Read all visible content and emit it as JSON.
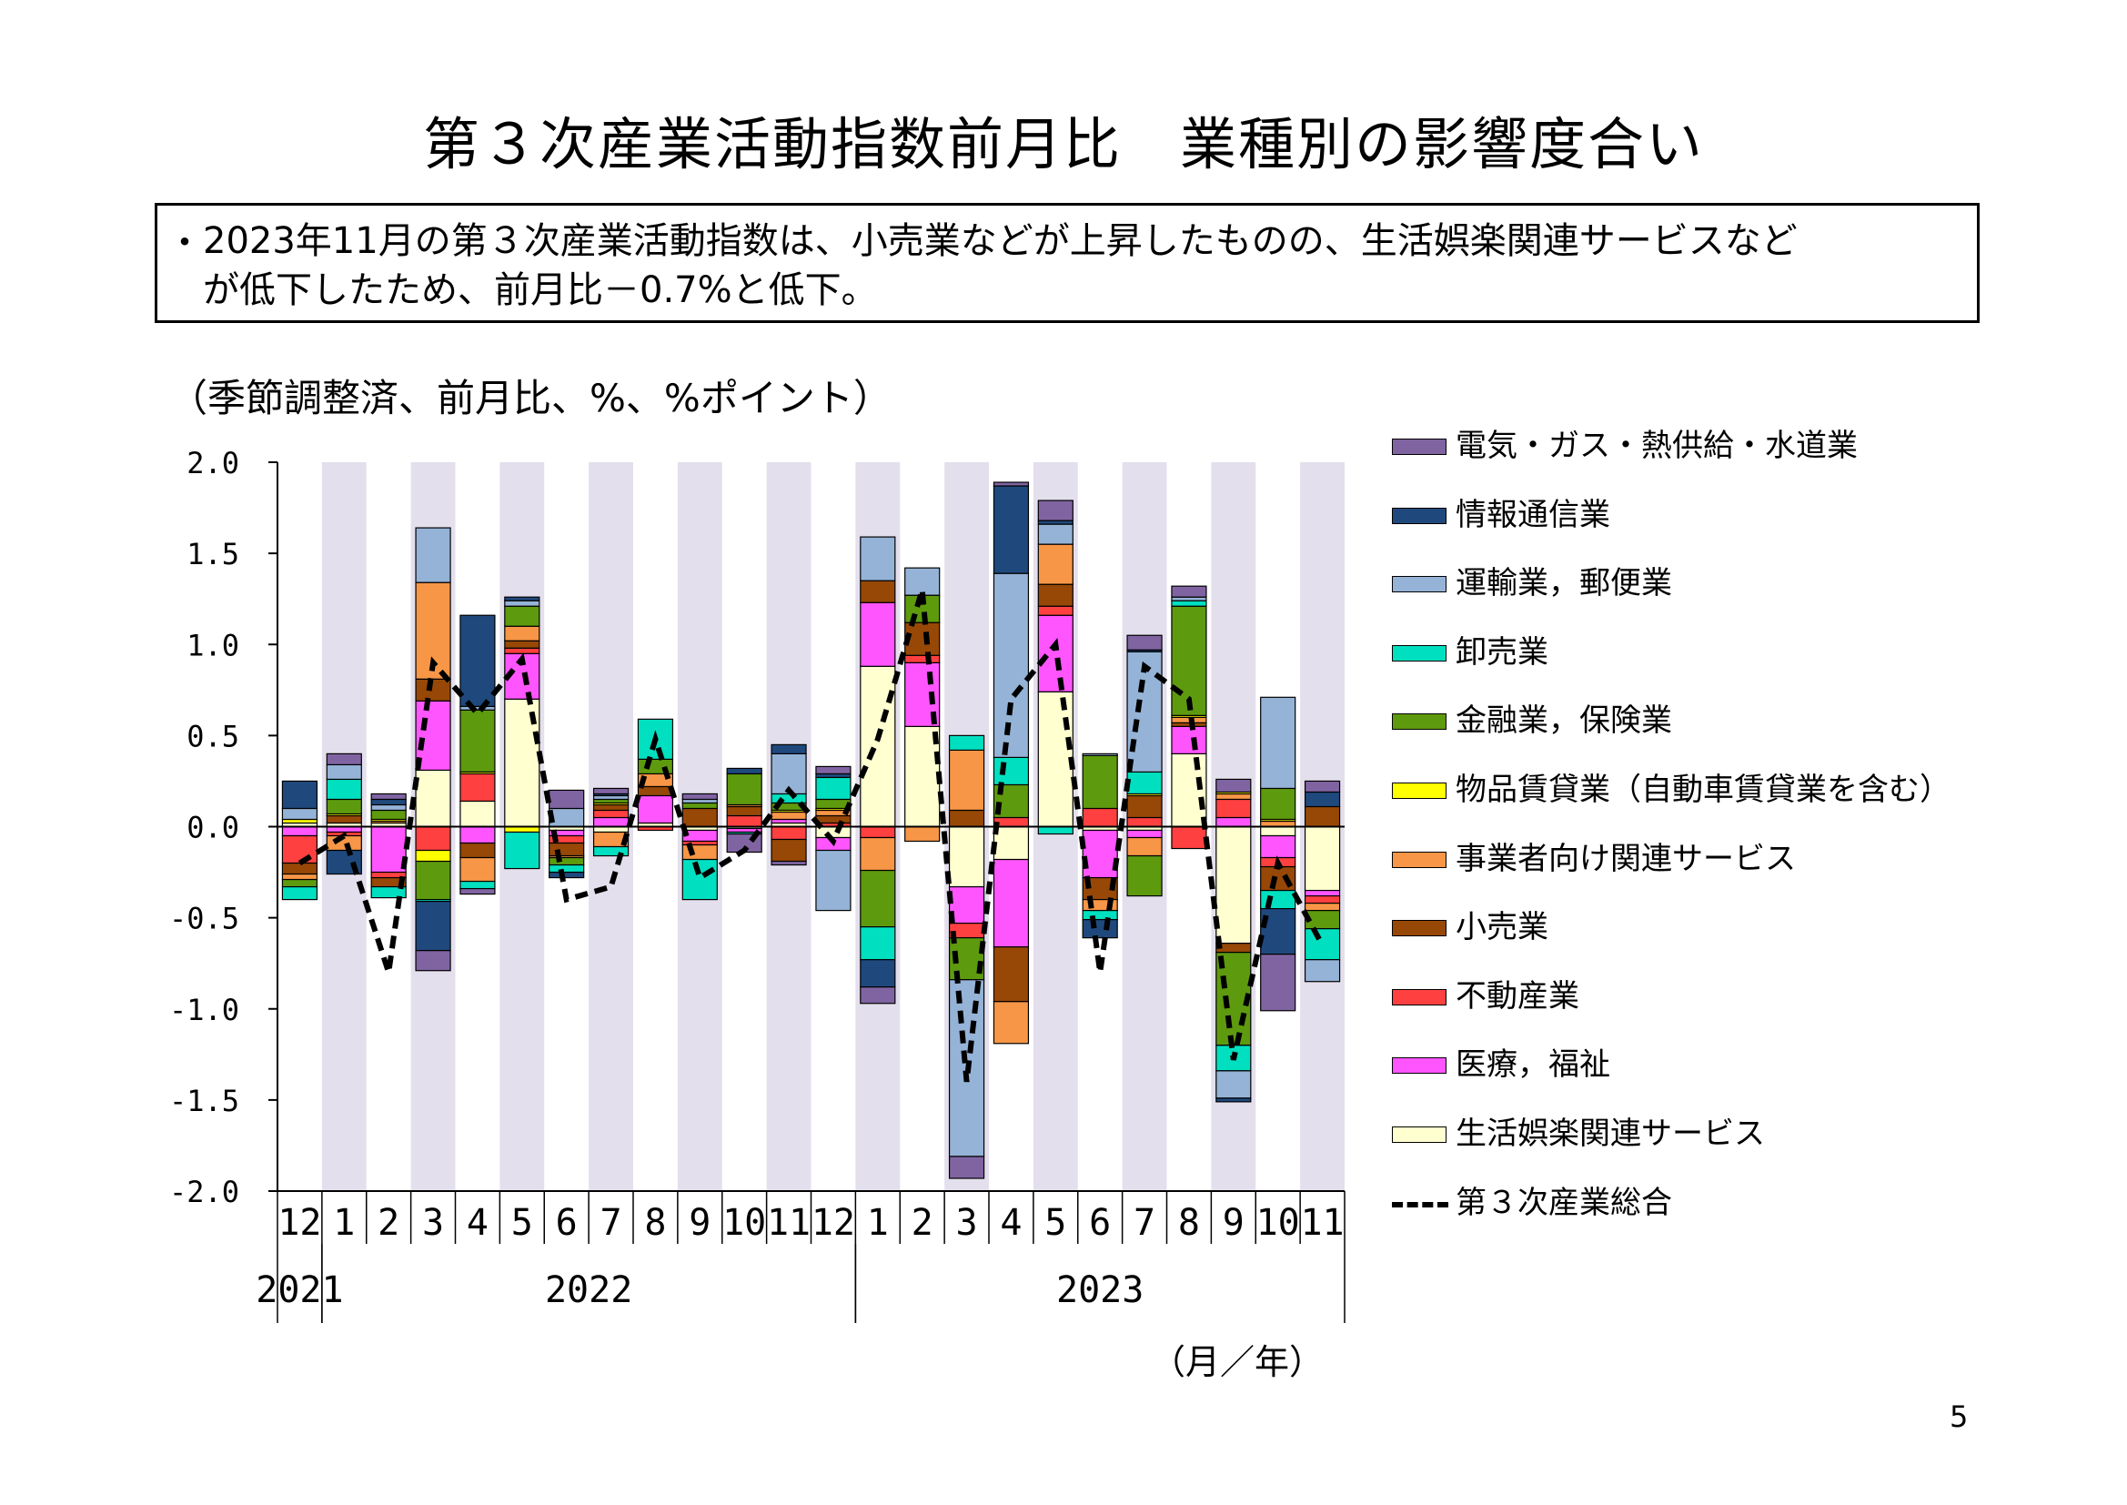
{
  "title": "第３次産業活動指数前月比　業種別の影響度合い",
  "summary": {
    "bullet": "・",
    "line1": "2023年11月の第３次産業活動指数は、小売業などが上昇したものの、生活娯楽関連サービスなど",
    "line2": "が低下したため、前月比－0.7%と低下。"
  },
  "unit_label": "（季節調整済、前月比、%、%ポイント）",
  "axis_unit_label": "（月／年）",
  "page_number": "5",
  "colors": {
    "電気・ガス・熱供給・水道業": "#8064A2",
    "情報通信業": "#1F497D",
    "運輸業,郵便業": "#95B3D7",
    "卸売業": "#00E0C0",
    "金融業,保険業": "#5E9A0E",
    "物品賃貸業": "#FFFF00",
    "事業者向け関連サービス": "#F79646",
    "小売業": "#974806",
    "不動産業": "#FF4040",
    "医療,福祉": "#FF55FF",
    "生活娯楽関連サービス": "#FFFFD0",
    "第３次産業総合": "#000000",
    "band": "#E4DFEC"
  },
  "chart_data": {
    "type": "stacked-bar-line",
    "title": "第３次産業活動指数前月比　業種別の影響度合い",
    "ylabel": "（季節調整済、前月比、%、%ポイント）",
    "xlabel": "（月／年）",
    "ylim": [
      -2.0,
      2.0
    ],
    "yticks": [
      "2.0",
      "1.5",
      "1.0",
      "0.5",
      "0.0",
      "-0.5",
      "-1.0",
      "-1.5",
      "-2.0"
    ],
    "categories": [
      "12",
      "1",
      "2",
      "3",
      "4",
      "5",
      "6",
      "7",
      "8",
      "9",
      "10",
      "11",
      "12",
      "1",
      "2",
      "3",
      "4",
      "5",
      "6",
      "7",
      "8",
      "9",
      "10",
      "11"
    ],
    "year_labels": [
      {
        "label": "2021",
        "span": [
          0,
          0
        ]
      },
      {
        "label": "2022",
        "span": [
          1,
          12
        ]
      },
      {
        "label": "2023",
        "span": [
          13,
          23
        ]
      }
    ],
    "series": [
      {
        "name": "生活娯楽関連サービス",
        "values": [
          0.02,
          0.02,
          0.02,
          0.31,
          0.14,
          0.7,
          -0.02,
          -0.03,
          0.02,
          -0.02,
          -0.01,
          0.02,
          -0.06,
          0.88,
          0.55,
          -0.33,
          -0.18,
          0.74,
          -0.02,
          -0.02,
          0.4,
          -0.64,
          -0.05,
          -0.35
        ]
      },
      {
        "name": "医療,福祉",
        "values": [
          -0.05,
          -0.03,
          -0.25,
          0.38,
          -0.09,
          0.25,
          -0.03,
          0.05,
          0.15,
          -0.06,
          -0.02,
          0.02,
          -0.07,
          0.35,
          0.35,
          -0.2,
          -0.48,
          0.42,
          -0.26,
          -0.04,
          0.15,
          0.05,
          -0.12,
          -0.03
        ]
      },
      {
        "name": "不動産業",
        "values": [
          -0.15,
          -0.02,
          -0.03,
          -0.13,
          0.15,
          0.03,
          -0.04,
          0.04,
          -0.02,
          -0.02,
          0.06,
          -0.07,
          0.02,
          -0.06,
          0.04,
          -0.08,
          0.05,
          0.05,
          0.1,
          0.05,
          -0.12,
          0.1,
          -0.05,
          -0.04
        ]
      },
      {
        "name": "小売業",
        "values": [
          -0.06,
          0.04,
          -0.05,
          0.12,
          -0.08,
          0.04,
          -0.07,
          0.03,
          0.05,
          0.1,
          0.05,
          -0.12,
          0.04,
          0.12,
          0.18,
          0.09,
          -0.3,
          0.12,
          -0.12,
          0.12,
          0.02,
          -0.05,
          -0.13,
          0.11
        ]
      },
      {
        "name": "事業者向け関連サービス",
        "values": [
          -0.03,
          -0.08,
          0.01,
          0.53,
          -0.13,
          0.08,
          -0.01,
          -0.08,
          0.07,
          -0.08,
          0.01,
          0.04,
          0.03,
          -0.18,
          -0.08,
          0.33,
          -0.23,
          0.22,
          -0.06,
          -0.1,
          0.03,
          0.03,
          0.03,
          -0.04
        ]
      },
      {
        "name": "物品賃貸業",
        "values": [
          0.02,
          0.01,
          0.01,
          -0.06,
          0.01,
          -0.03,
          0.0,
          0.01,
          0.0,
          0.0,
          0.0,
          0.01,
          0.01,
          0.0,
          0.0,
          0.0,
          0.0,
          0.0,
          0.0,
          0.01,
          0.01,
          0.01,
          0.01,
          0.0
        ]
      },
      {
        "name": "金融業,保険業",
        "values": [
          -0.04,
          0.08,
          0.05,
          -0.21,
          0.34,
          0.11,
          -0.04,
          0.02,
          0.08,
          0.03,
          0.17,
          0.04,
          0.05,
          -0.31,
          0.15,
          -0.23,
          0.18,
          0.0,
          0.29,
          -0.22,
          0.6,
          -0.51,
          0.17,
          -0.1
        ]
      },
      {
        "name": "卸売業",
        "values": [
          -0.07,
          0.11,
          -0.06,
          -0.01,
          -0.04,
          -0.2,
          -0.04,
          -0.05,
          0.22,
          -0.22,
          -0.01,
          0.05,
          0.12,
          -0.18,
          0.0,
          0.08,
          0.15,
          -0.04,
          -0.05,
          0.12,
          0.03,
          -0.14,
          -0.1,
          -0.17
        ]
      },
      {
        "name": "運輸業,郵便業",
        "values": [
          0.06,
          0.08,
          0.03,
          0.3,
          0.02,
          0.03,
          0.1,
          0.02,
          0.0,
          0.02,
          0.0,
          0.22,
          -0.33,
          0.24,
          0.15,
          -0.97,
          1.01,
          0.11,
          0.01,
          0.66,
          0.02,
          -0.15,
          0.5,
          -0.12
        ]
      },
      {
        "name": "情報通信業",
        "values": [
          0.15,
          -0.13,
          0.03,
          -0.27,
          0.5,
          0.02,
          -0.03,
          0.01,
          0.0,
          0.0,
          0.03,
          0.05,
          0.02,
          -0.15,
          0.0,
          0.0,
          0.48,
          0.02,
          -0.1,
          0.01,
          0.0,
          -0.02,
          -0.25,
          0.08
        ]
      },
      {
        "name": "電気・ガス・熱供給・水道業",
        "values": [
          0.0,
          0.06,
          0.03,
          -0.11,
          -0.03,
          0.0,
          0.1,
          0.03,
          0.0,
          0.03,
          -0.1,
          -0.02,
          0.04,
          -0.09,
          0.0,
          -0.12,
          0.02,
          0.11,
          0.0,
          0.08,
          0.06,
          0.07,
          -0.31,
          0.06
        ]
      }
    ],
    "total": {
      "name": "第３次産業総合",
      "values": [
        -0.2,
        -0.05,
        -0.8,
        0.9,
        0.62,
        0.92,
        -0.4,
        -0.33,
        0.48,
        -0.28,
        -0.13,
        0.2,
        -0.08,
        0.48,
        1.3,
        -1.4,
        0.7,
        1.0,
        -0.8,
        0.88,
        0.7,
        -1.28,
        -0.2,
        -0.65
      ]
    },
    "legend": [
      "電気・ガス・熱供給・水道業",
      "情報通信業",
      "運輸業，郵便業",
      "卸売業",
      "金融業，保険業",
      "物品賃貸業（自動車賃貸業を含む）",
      "事業者向け関連サービス",
      "小売業",
      "不動産業",
      "医療，福祉",
      "生活娯楽関連サービス",
      "第３次産業総合"
    ],
    "legend_placement": "right"
  }
}
